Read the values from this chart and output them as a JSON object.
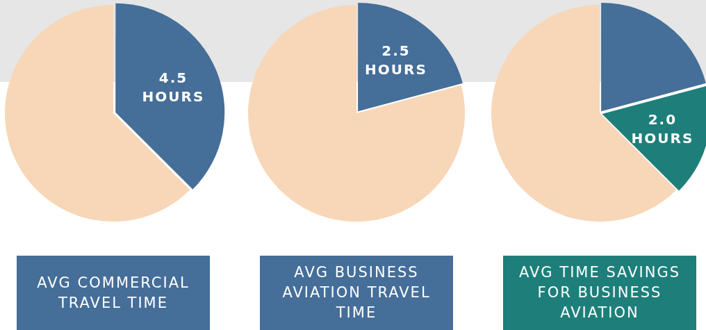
{
  "chart_data": [
    {
      "type": "pie",
      "title": "AVG COMMERCIAL TRAVEL TIME",
      "categories": [
        null,
        null
      ],
      "values": [
        4.5,
        7.5
      ],
      "colors": [
        "#456e99",
        "#f7d7b8"
      ],
      "value_labels": [
        "4.5 HOURS",
        null
      ]
    },
    {
      "type": "pie",
      "title": "AVG BUSINESS AVIATION TRAVEL TIME",
      "categories": [
        null,
        null
      ],
      "values": [
        2.5,
        9.5
      ],
      "colors": [
        "#456e99",
        "#f7d7b8"
      ],
      "value_labels": [
        "2.5 HOURS",
        null
      ]
    },
    {
      "type": "pie",
      "title": "AVG TIME SAVINGS FOR BUSINESS AVIATION",
      "categories": [
        null,
        null,
        null
      ],
      "values": [
        2.5,
        2.0,
        7.5
      ],
      "colors": [
        "#456e99",
        "#1e7f7a",
        "#f7d7b8"
      ],
      "value_labels": [
        null,
        "2.0 HOURS",
        null
      ]
    }
  ]
}
